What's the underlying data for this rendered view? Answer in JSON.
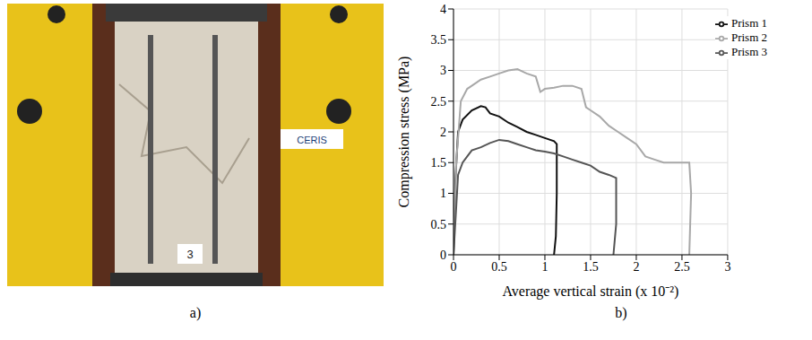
{
  "panel_labels": [
    "a)",
    "b)"
  ],
  "photo": {
    "texts": [
      "CERIS",
      "3"
    ]
  },
  "chart_data": {
    "type": "line",
    "x_label": "Average vertical strain (x 10⁻²)",
    "y_label": "Compression stress (MPa)",
    "xlim": [
      0,
      3
    ],
    "xticks": [
      0,
      0.5,
      1,
      1.5,
      2,
      2.5,
      3
    ],
    "ylim": [
      0,
      4
    ],
    "yticks": [
      0,
      0.5,
      1,
      1.5,
      2,
      2.5,
      3,
      3.5,
      4
    ],
    "grid": true,
    "legend": "upper right",
    "series": [
      {
        "name": "Prism 1",
        "color": "#111111",
        "x": [
          0,
          0.02,
          0.05,
          0.1,
          0.2,
          0.3,
          0.35,
          0.4,
          0.5,
          0.6,
          0.7,
          0.8,
          0.9,
          1.0,
          1.1,
          1.13,
          1.13,
          1.12,
          1.1
        ],
        "values": [
          0,
          1.2,
          2.0,
          2.2,
          2.35,
          2.42,
          2.4,
          2.3,
          2.25,
          2.15,
          2.08,
          2.0,
          1.95,
          1.9,
          1.85,
          1.8,
          1.0,
          0.3,
          0
        ]
      },
      {
        "name": "Prism 2",
        "color": "#a8a8a8",
        "x": [
          0,
          0.03,
          0.08,
          0.15,
          0.2,
          0.3,
          0.4,
          0.5,
          0.6,
          0.7,
          0.8,
          0.9,
          0.95,
          1.0,
          1.1,
          1.2,
          1.3,
          1.4,
          1.45,
          1.5,
          1.6,
          1.7,
          1.8,
          1.9,
          2.0,
          2.1,
          2.2,
          2.3,
          2.58,
          2.6,
          2.58
        ],
        "values": [
          0,
          1.5,
          2.5,
          2.7,
          2.75,
          2.85,
          2.9,
          2.95,
          3.0,
          3.02,
          2.95,
          2.9,
          2.65,
          2.7,
          2.72,
          2.75,
          2.75,
          2.7,
          2.4,
          2.35,
          2.25,
          2.1,
          2.0,
          1.9,
          1.8,
          1.6,
          1.55,
          1.5,
          1.5,
          1.0,
          0
        ]
      },
      {
        "name": "Prism 3",
        "color": "#555555",
        "x": [
          0,
          0.05,
          0.1,
          0.15,
          0.2,
          0.3,
          0.4,
          0.5,
          0.6,
          0.7,
          0.8,
          0.9,
          1.0,
          1.1,
          1.2,
          1.3,
          1.4,
          1.5,
          1.6,
          1.7,
          1.78,
          1.78,
          1.75
        ],
        "values": [
          0,
          1.3,
          1.5,
          1.6,
          1.7,
          1.75,
          1.82,
          1.87,
          1.85,
          1.8,
          1.75,
          1.7,
          1.68,
          1.65,
          1.6,
          1.55,
          1.5,
          1.45,
          1.35,
          1.3,
          1.25,
          0.5,
          0
        ]
      }
    ]
  }
}
